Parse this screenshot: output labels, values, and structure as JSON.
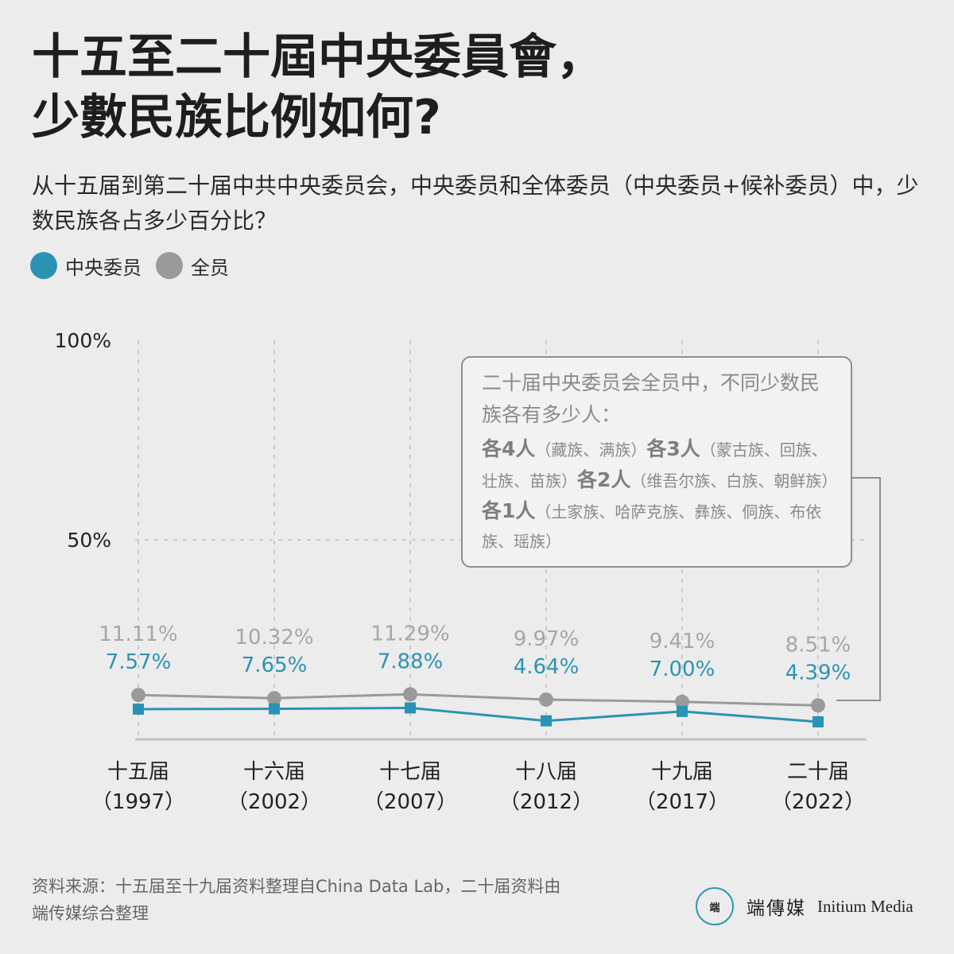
{
  "title_lines": [
    "十五至二十屆中央委員會，",
    "少數民族比例如何?"
  ],
  "subtitle": "从十五届到第二十届中共中央委员会，中央委员和全体委员（中央委员+候补委员）中，少数民族各占多少百分比？",
  "legend": [
    {
      "label": "中央委员",
      "color": "#2a93b4"
    },
    {
      "label": "全员",
      "color": "#9a9a9a"
    }
  ],
  "chart_data": {
    "type": "line",
    "categories": [
      {
        "name": "十五届",
        "year": "（1997）"
      },
      {
        "name": "十六届",
        "year": "（2002）"
      },
      {
        "name": "十七届",
        "year": "（2007）"
      },
      {
        "name": "十八届",
        "year": "（2012）"
      },
      {
        "name": "十九届",
        "year": "（2017）"
      },
      {
        "name": "二十届",
        "year": "（2022）"
      }
    ],
    "series": [
      {
        "name": "全员",
        "color": "#9a9a9a",
        "marker": "circle",
        "values": [
          11.11,
          10.32,
          11.29,
          9.97,
          9.41,
          8.51
        ],
        "labels": [
          "11.11%",
          "10.32%",
          "11.29%",
          "9.97%",
          "9.41%",
          "8.51%"
        ]
      },
      {
        "name": "中央委员",
        "color": "#2a93b4",
        "marker": "square",
        "values": [
          7.57,
          7.65,
          7.88,
          4.64,
          7.0,
          4.39
        ],
        "labels": [
          "7.57%",
          "7.65%",
          "7.88%",
          "4.64%",
          "7.00%",
          "4.39%"
        ]
      }
    ],
    "ylim": [
      0,
      100
    ],
    "yticks": [
      {
        "value": 50,
        "label": "50%"
      },
      {
        "value": 100,
        "label": "100%"
      }
    ],
    "grid": true
  },
  "callout": {
    "head": "二十届中央委员会全员中，不同少数民族各有多少人：",
    "groups": [
      {
        "count": "各4人",
        "list": "（藏族、满族）"
      },
      {
        "count": "各3人",
        "list": "（蒙古族、回族、壮族、苗族）"
      },
      {
        "count": "各2人",
        "list": "（维吾尔族、白族、朝鲜族）"
      },
      {
        "count": "各1人",
        "list": "（土家族、哈萨克族、彝族、侗族、布依族、瑶族）"
      }
    ]
  },
  "source": "资料来源：十五届至十九届资料整理自China Data Lab，二十届资料由端传媒综合整理",
  "brand": {
    "logo": "端",
    "cn": "端傳媒",
    "en": "Initium Media"
  }
}
